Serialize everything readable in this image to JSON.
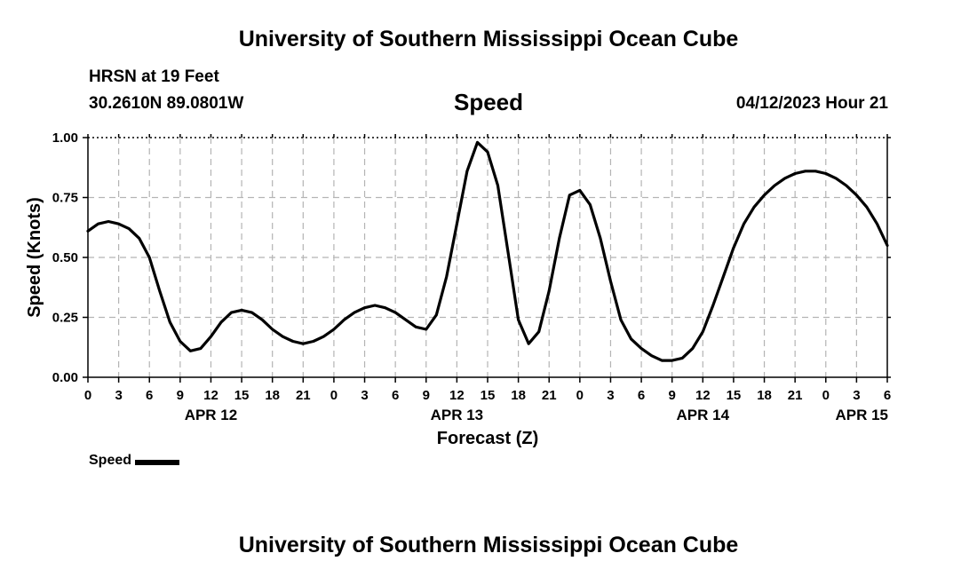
{
  "header": {
    "title": "University of Southern Mississippi Ocean Cube",
    "station": "HRSN at 19 Feet",
    "location": "30.2610N  89.0801W",
    "variable": "Speed",
    "datetime": "04/12/2023 Hour 21"
  },
  "footer": {
    "title": "University of Southern Mississippi Ocean Cube"
  },
  "legend": {
    "label": "Speed",
    "color": "#000000"
  },
  "chart_data": {
    "type": "line",
    "title": "Speed",
    "xlabel": "Forecast (Z)",
    "ylabel": "Speed (Knots)",
    "xlim": [
      0,
      78
    ],
    "ylim": [
      0,
      1.0
    ],
    "grid": true,
    "legend_position": "bottom-left",
    "y_ticks": [
      {
        "value": 0.0,
        "label": "0.00"
      },
      {
        "value": 0.25,
        "label": "0.25"
      },
      {
        "value": 0.5,
        "label": "0.50"
      },
      {
        "value": 0.75,
        "label": "0.75"
      },
      {
        "value": 1.0,
        "label": "1.00"
      }
    ],
    "x_ticks": [
      {
        "value": 0,
        "label": "0"
      },
      {
        "value": 3,
        "label": "3"
      },
      {
        "value": 6,
        "label": "6"
      },
      {
        "value": 9,
        "label": "9"
      },
      {
        "value": 12,
        "label": "12"
      },
      {
        "value": 15,
        "label": "15"
      },
      {
        "value": 18,
        "label": "18"
      },
      {
        "value": 21,
        "label": "21"
      },
      {
        "value": 24,
        "label": "0"
      },
      {
        "value": 27,
        "label": "3"
      },
      {
        "value": 30,
        "label": "6"
      },
      {
        "value": 33,
        "label": "9"
      },
      {
        "value": 36,
        "label": "12"
      },
      {
        "value": 39,
        "label": "15"
      },
      {
        "value": 42,
        "label": "18"
      },
      {
        "value": 45,
        "label": "21"
      },
      {
        "value": 48,
        "label": "0"
      },
      {
        "value": 51,
        "label": "3"
      },
      {
        "value": 54,
        "label": "6"
      },
      {
        "value": 57,
        "label": "9"
      },
      {
        "value": 60,
        "label": "12"
      },
      {
        "value": 63,
        "label": "15"
      },
      {
        "value": 66,
        "label": "18"
      },
      {
        "value": 69,
        "label": "21"
      },
      {
        "value": 72,
        "label": "0"
      },
      {
        "value": 75,
        "label": "3"
      },
      {
        "value": 78,
        "label": "6"
      }
    ],
    "date_labels": [
      {
        "value": 12,
        "label": "APR 12"
      },
      {
        "value": 36,
        "label": "APR 13"
      },
      {
        "value": 60,
        "label": "APR 14"
      },
      {
        "value": 78,
        "label": "APR 15"
      }
    ],
    "series": [
      {
        "name": "Speed",
        "color": "#000000",
        "x": [
          0,
          1,
          2,
          3,
          4,
          5,
          6,
          7,
          8,
          9,
          10,
          11,
          12,
          13,
          14,
          15,
          16,
          17,
          18,
          19,
          20,
          21,
          22,
          23,
          24,
          25,
          26,
          27,
          28,
          29,
          30,
          31,
          32,
          33,
          34,
          35,
          36,
          37,
          38,
          39,
          40,
          41,
          42,
          43,
          44,
          45,
          46,
          47,
          48,
          49,
          50,
          51,
          52,
          53,
          54,
          55,
          56,
          57,
          58,
          59,
          60,
          61,
          62,
          63,
          64,
          65,
          66,
          67,
          68,
          69,
          70,
          71,
          72,
          73,
          74,
          75,
          76,
          77,
          78
        ],
        "values": [
          0.61,
          0.64,
          0.65,
          0.64,
          0.62,
          0.58,
          0.5,
          0.36,
          0.23,
          0.15,
          0.11,
          0.12,
          0.17,
          0.23,
          0.27,
          0.28,
          0.27,
          0.24,
          0.2,
          0.17,
          0.15,
          0.14,
          0.15,
          0.17,
          0.2,
          0.24,
          0.27,
          0.29,
          0.3,
          0.29,
          0.27,
          0.24,
          0.21,
          0.2,
          0.26,
          0.42,
          0.64,
          0.86,
          0.98,
          0.94,
          0.8,
          0.52,
          0.24,
          0.14,
          0.19,
          0.36,
          0.58,
          0.76,
          0.78,
          0.72,
          0.58,
          0.4,
          0.24,
          0.16,
          0.12,
          0.09,
          0.07,
          0.07,
          0.08,
          0.12,
          0.19,
          0.3,
          0.42,
          0.54,
          0.64,
          0.71,
          0.76,
          0.8,
          0.83,
          0.85,
          0.86,
          0.86,
          0.85,
          0.83,
          0.8,
          0.76,
          0.71,
          0.64,
          0.55
        ]
      }
    ]
  }
}
